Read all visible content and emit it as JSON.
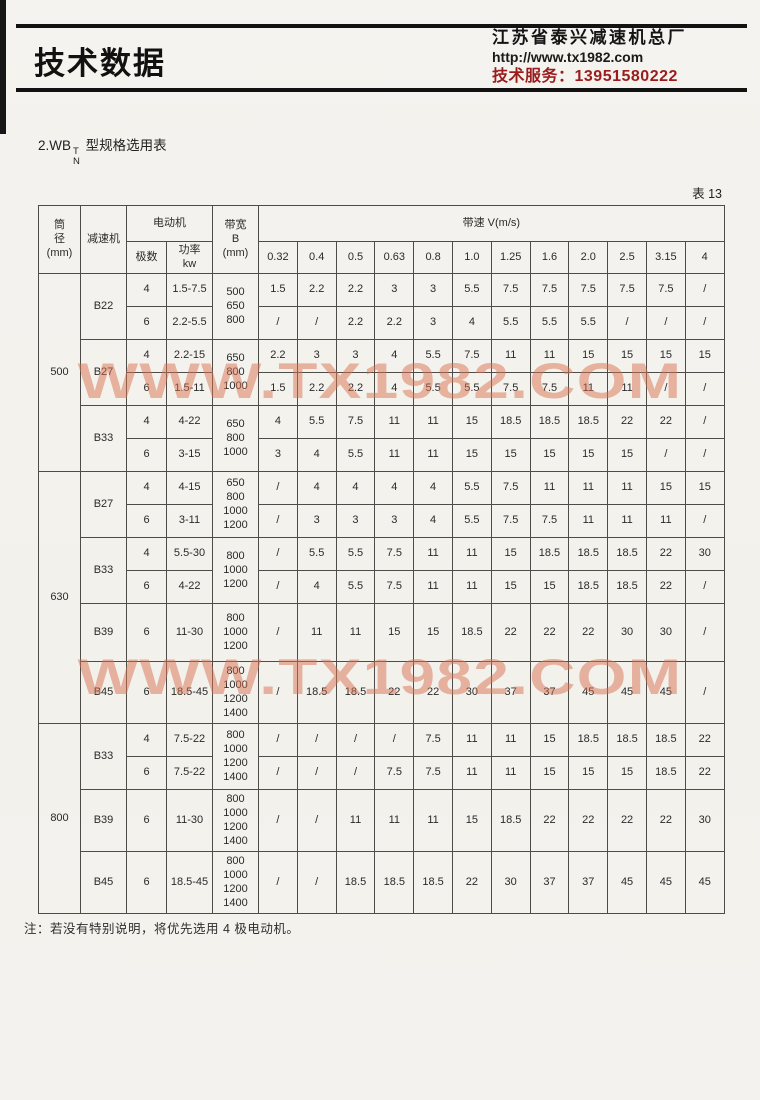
{
  "header": {
    "doc_title": "技术数据",
    "company_name": "江苏省泰兴减速机总厂",
    "website": "http://www.tx1982.com",
    "service_line": "技术服务：13951580222",
    "service_color": "#9a1d1d"
  },
  "section_title": {
    "prefix": "2.WB",
    "sup": "T",
    "sub": "N",
    "suffix": " 型规格选用表"
  },
  "table_label": "表 13",
  "watermark": {
    "text": "WWW.TX1982.COM",
    "color": "#d8704e"
  },
  "footnote": "注：若没有特别说明，将优先选用 4 极电动机。",
  "table": {
    "headers": {
      "diameter": "筒\n径\n(mm)",
      "reducer": "减速机",
      "motor": "电动机",
      "poles": "极数",
      "power": "功率\nkw",
      "belt_width": "带宽\nB\n(mm)",
      "belt_speed": "带速 V(m/s)",
      "speeds": [
        "0.32",
        "0.4",
        "0.5",
        "0.63",
        "0.8",
        "1.0",
        "1.25",
        "1.6",
        "2.0",
        "2.5",
        "3.15",
        "4"
      ]
    },
    "groups": [
      {
        "diameter": "500",
        "models": [
          {
            "reducer": "B22",
            "width": "500\n650\n800",
            "rows": [
              {
                "poles": "4",
                "power": "1.5-7.5",
                "values": [
                  "1.5",
                  "2.2",
                  "2.2",
                  "3",
                  "3",
                  "5.5",
                  "7.5",
                  "7.5",
                  "7.5",
                  "7.5",
                  "7.5",
                  "/"
                ]
              },
              {
                "poles": "6",
                "power": "2.2-5.5",
                "values": [
                  "/",
                  "/",
                  "2.2",
                  "2.2",
                  "3",
                  "4",
                  "5.5",
                  "5.5",
                  "5.5",
                  "/",
                  "/",
                  "/"
                ]
              }
            ]
          },
          {
            "reducer": "B27",
            "width": "650\n800\n1000",
            "rows": [
              {
                "poles": "4",
                "power": "2.2-15",
                "values": [
                  "2.2",
                  "3",
                  "3",
                  "4",
                  "5.5",
                  "7.5",
                  "11",
                  "11",
                  "15",
                  "15",
                  "15",
                  "15"
                ]
              },
              {
                "poles": "6",
                "power": "1.5-11",
                "values": [
                  "1.5",
                  "2.2",
                  "2.2",
                  "4",
                  "5.5",
                  "5.5",
                  "7.5",
                  "7.5",
                  "11",
                  "11",
                  "/",
                  "/"
                ]
              }
            ]
          },
          {
            "reducer": "B33",
            "width": "650\n800\n1000",
            "rows": [
              {
                "poles": "4",
                "power": "4-22",
                "values": [
                  "4",
                  "5.5",
                  "7.5",
                  "11",
                  "11",
                  "15",
                  "18.5",
                  "18.5",
                  "18.5",
                  "22",
                  "22",
                  "/"
                ]
              },
              {
                "poles": "6",
                "power": "3-15",
                "values": [
                  "3",
                  "4",
                  "5.5",
                  "11",
                  "11",
                  "15",
                  "15",
                  "15",
                  "15",
                  "15",
                  "/",
                  "/"
                ]
              }
            ]
          }
        ]
      },
      {
        "diameter": "630",
        "models": [
          {
            "reducer": "B27",
            "width": "650\n800\n1000\n1200",
            "rows": [
              {
                "poles": "4",
                "power": "4-15",
                "values": [
                  "/",
                  "4",
                  "4",
                  "4",
                  "4",
                  "5.5",
                  "7.5",
                  "11",
                  "11",
                  "11",
                  "15",
                  "15"
                ]
              },
              {
                "poles": "6",
                "power": "3-11",
                "values": [
                  "/",
                  "3",
                  "3",
                  "3",
                  "4",
                  "5.5",
                  "7.5",
                  "7.5",
                  "11",
                  "11",
                  "11",
                  "/"
                ]
              }
            ]
          },
          {
            "reducer": "B33",
            "width": "800\n1000\n1200",
            "rows": [
              {
                "poles": "4",
                "power": "5.5-30",
                "values": [
                  "/",
                  "5.5",
                  "5.5",
                  "7.5",
                  "11",
                  "11",
                  "15",
                  "18.5",
                  "18.5",
                  "18.5",
                  "22",
                  "30"
                ]
              },
              {
                "poles": "6",
                "power": "4-22",
                "values": [
                  "/",
                  "4",
                  "5.5",
                  "7.5",
                  "11",
                  "11",
                  "15",
                  "15",
                  "18.5",
                  "18.5",
                  "22",
                  "/"
                ]
              }
            ]
          },
          {
            "reducer": "B39",
            "width": "800\n1000\n1200",
            "rows": [
              {
                "poles": "6",
                "power": "11-30",
                "values": [
                  "/",
                  "11",
                  "11",
                  "15",
                  "15",
                  "18.5",
                  "22",
                  "22",
                  "22",
                  "30",
                  "30",
                  "/"
                ]
              }
            ]
          },
          {
            "reducer": "B45",
            "width": "800\n1000\n1200\n1400",
            "rows": [
              {
                "poles": "6",
                "power": "18.5-45",
                "values": [
                  "/",
                  "18.5",
                  "18.5",
                  "22",
                  "22",
                  "30",
                  "37",
                  "37",
                  "45",
                  "45",
                  "45",
                  "/"
                ]
              }
            ]
          }
        ]
      },
      {
        "diameter": "800",
        "models": [
          {
            "reducer": "B33",
            "width": "800\n1000\n1200\n1400",
            "rows": [
              {
                "poles": "4",
                "power": "7.5-22",
                "values": [
                  "/",
                  "/",
                  "/",
                  "/",
                  "7.5",
                  "11",
                  "11",
                  "15",
                  "18.5",
                  "18.5",
                  "18.5",
                  "22"
                ]
              },
              {
                "poles": "6",
                "power": "7.5-22",
                "values": [
                  "/",
                  "/",
                  "/",
                  "7.5",
                  "7.5",
                  "11",
                  "11",
                  "15",
                  "15",
                  "15",
                  "18.5",
                  "22"
                ]
              }
            ]
          },
          {
            "reducer": "B39",
            "width": "800\n1000\n1200\n1400",
            "rows": [
              {
                "poles": "6",
                "power": "11-30",
                "values": [
                  "/",
                  "/",
                  "11",
                  "11",
                  "11",
                  "15",
                  "18.5",
                  "22",
                  "22",
                  "22",
                  "22",
                  "30"
                ]
              }
            ]
          },
          {
            "reducer": "B45",
            "width": "800\n1000\n1200\n1400",
            "rows": [
              {
                "poles": "6",
                "power": "18.5-45",
                "values": [
                  "/",
                  "/",
                  "18.5",
                  "18.5",
                  "18.5",
                  "22",
                  "30",
                  "37",
                  "37",
                  "45",
                  "45",
                  "45"
                ]
              }
            ]
          }
        ]
      }
    ]
  }
}
